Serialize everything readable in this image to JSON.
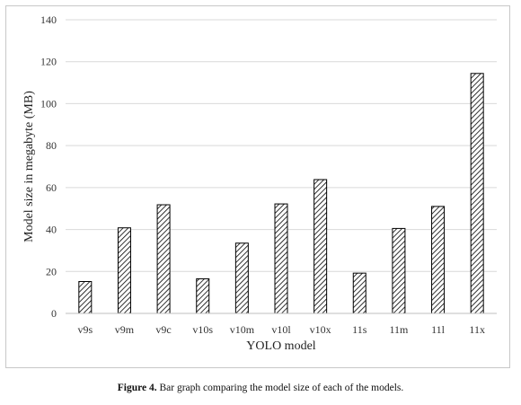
{
  "chart_data": {
    "type": "bar",
    "categories": [
      "v9s",
      "v9m",
      "v9c",
      "v10s",
      "v10m",
      "v10l",
      "v10x",
      "11s",
      "11m",
      "11l",
      "11x"
    ],
    "series": [
      {
        "values": [
          15.2,
          40.8,
          51.8,
          16.5,
          33.5,
          52.2,
          63.8,
          19.2,
          40.5,
          51.0,
          114.4
        ]
      }
    ],
    "title": "",
    "xlabel": "YOLO model",
    "ylabel": "Model size in megabyte (MB)",
    "ylim": [
      0,
      140
    ],
    "yticks": [
      0,
      20,
      40,
      60,
      80,
      100,
      120,
      140
    ],
    "grid": "horizontal",
    "bar_fill": "diagonal-hatch",
    "bar_color": "#000000",
    "grid_color": "#d9d9d9"
  },
  "caption": {
    "label": "Figure 4.",
    "text": " Bar graph comparing the model size of each of the models."
  }
}
